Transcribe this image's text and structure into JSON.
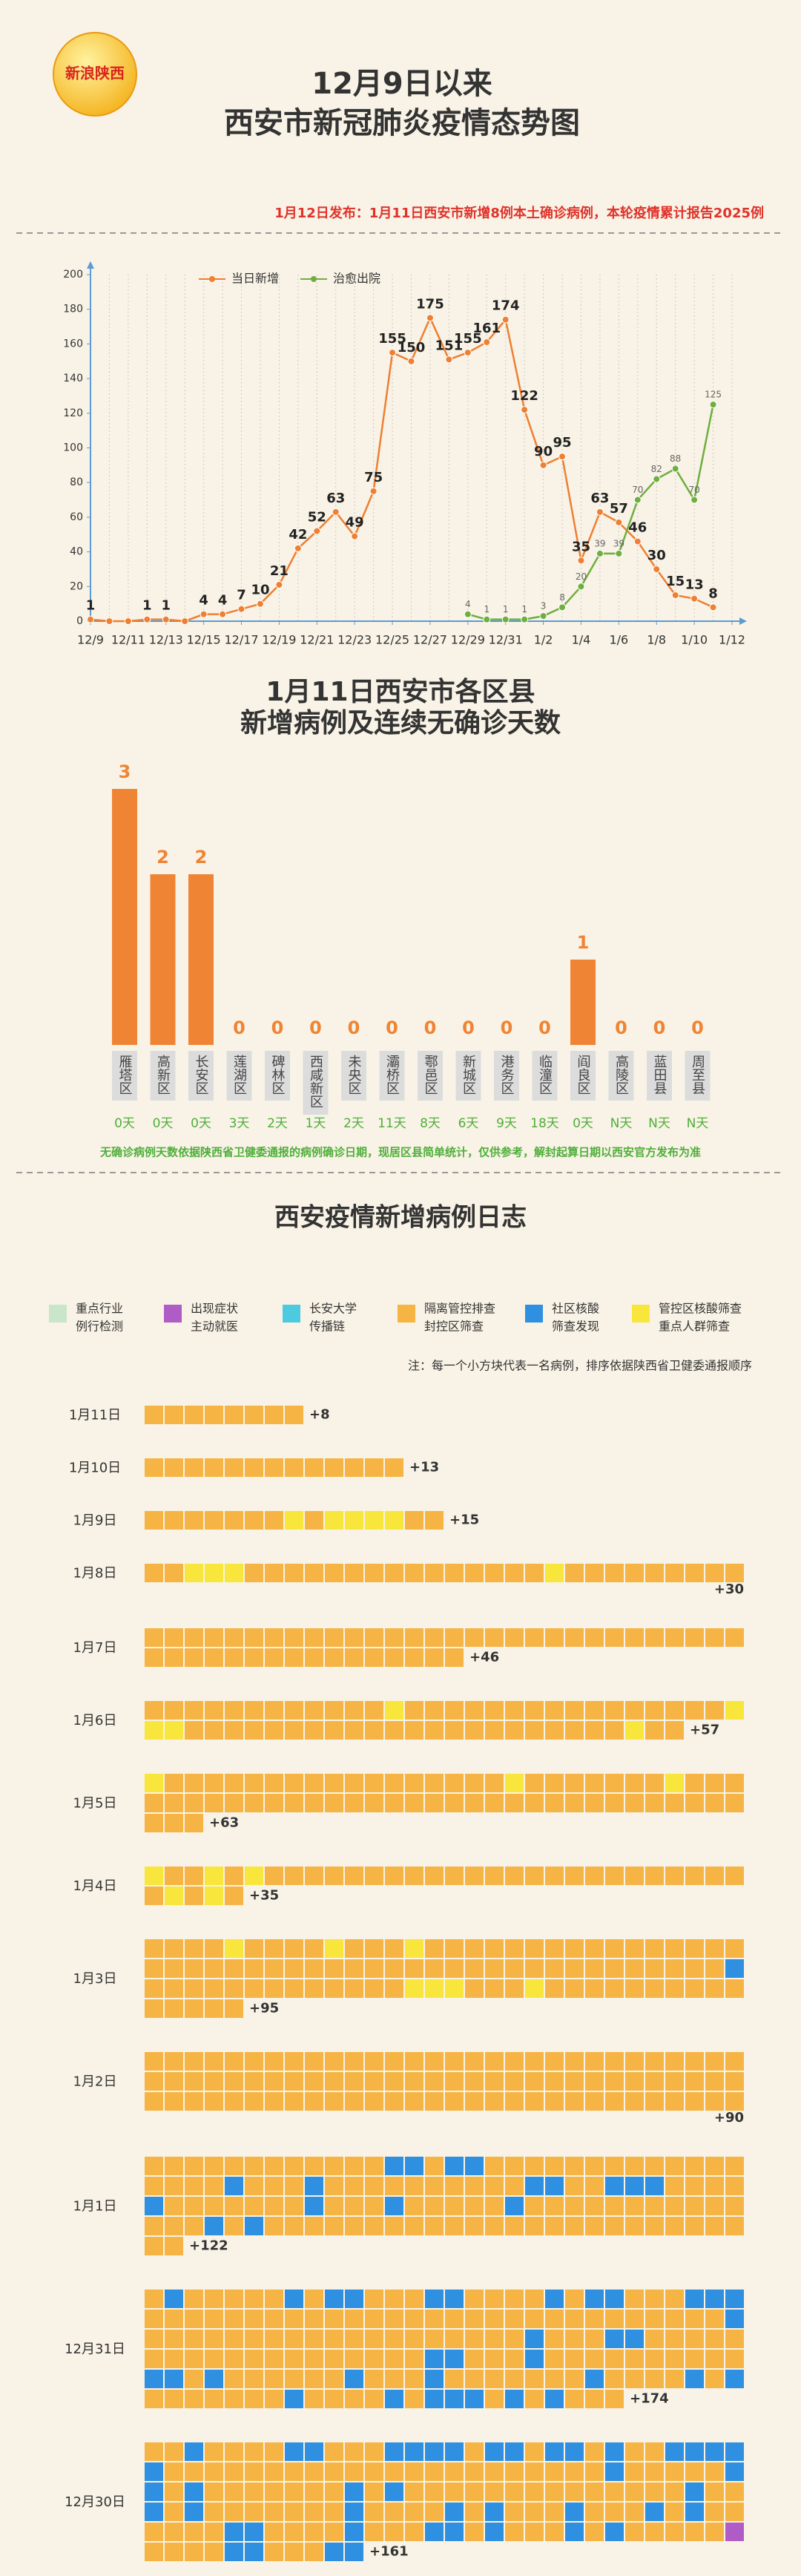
{
  "logo": "新浪陕西",
  "title": [
    "12月9日以来",
    "西安市新冠肺炎疫情态势图"
  ],
  "notice": "1月12日发布：1月11日西安市新增8例本土确诊病例，本轮疫情累计报告2025例",
  "chart_data": [
    {
      "type": "line",
      "legend_position": "top",
      "grid": true,
      "categories": [
        "12/9",
        null,
        "12/11",
        null,
        "12/13",
        null,
        "12/15",
        null,
        "12/17",
        null,
        "12/19",
        null,
        "12/21",
        null,
        "12/23",
        null,
        "12/25",
        null,
        "12/27",
        null,
        "12/29",
        null,
        "12/31",
        null,
        "1/2",
        null,
        "1/4",
        null,
        "1/6",
        null,
        "1/8",
        null,
        "1/10",
        null,
        "1/12"
      ],
      "series": [
        {
          "name": "当日新增",
          "color": "#ee7f33",
          "values": [
            1,
            0,
            0,
            1,
            1,
            0,
            4,
            4,
            7,
            10,
            21,
            42,
            52,
            63,
            49,
            75,
            155,
            150,
            175,
            151,
            155,
            161,
            174,
            122,
            90,
            95,
            35,
            63,
            57,
            46,
            30,
            15,
            13,
            8,
            null
          ]
        },
        {
          "name": "治愈出院",
          "color": "#6fae3f",
          "values": [
            null,
            null,
            null,
            null,
            null,
            null,
            null,
            null,
            null,
            null,
            null,
            null,
            null,
            null,
            null,
            null,
            null,
            null,
            null,
            null,
            4,
            1,
            1,
            1,
            3,
            8,
            20,
            39,
            39,
            70,
            82,
            88,
            70,
            125,
            null
          ]
        }
      ],
      "ylim": [
        0,
        200
      ],
      "yticks": [
        0,
        20,
        40,
        60,
        80,
        100,
        120,
        140,
        160,
        180,
        200
      ]
    },
    {
      "type": "bar",
      "title": [
        "1月11日西安市各区县",
        "新增病例及连续无确诊天数"
      ],
      "color": "#ef8434",
      "categories": [
        "雁塔区",
        "高新区",
        "长安区",
        "莲湖区",
        "碑林区",
        "西咸新区",
        "未央区",
        "灞桥区",
        "鄠邑区",
        "新城区",
        "港务区",
        "临潼区",
        "阎良区",
        "高陵区",
        "蓝田县",
        "周至县"
      ],
      "values": [
        3,
        2,
        2,
        0,
        0,
        0,
        0,
        0,
        0,
        0,
        0,
        0,
        1,
        0,
        0,
        0
      ],
      "days_without_cases": [
        "0天",
        "0天",
        "0天",
        "3天",
        "2天",
        "1天",
        "2天",
        "11天",
        "8天",
        "6天",
        "9天",
        "18天",
        "0天",
        "N天",
        "N天",
        "N天"
      ],
      "note": "无确诊病例天数依据陕西省卫健委通报的病例确诊日期，现居区县简单统计，仅供参考，解封起算日期以西安官方发布为准"
    }
  ],
  "case_log": {
    "title": "西安疫情新增病例日志",
    "legend": [
      {
        "lines": [
          "重点行业",
          "例行检测"
        ],
        "color": "#c8e6c9"
      },
      {
        "lines": [
          "出现症状",
          "主动就医"
        ],
        "color": "#b05cc6"
      },
      {
        "lines": [
          "长安大学",
          "传播链"
        ],
        "color": "#4dc9e0"
      },
      {
        "lines": [
          "隔离管控排查",
          "封控区筛查"
        ],
        "color": "#f6b445"
      },
      {
        "lines": [
          "社区核酸",
          "筛查发现"
        ],
        "color": "#2f8fe0"
      },
      {
        "lines": [
          "管控区核酸筛查",
          "重点人群筛查"
        ],
        "color": "#f8e63c"
      }
    ],
    "note": "注：每一个小方块代表一名病例，排序依据陕西省卫健委通报顺序",
    "days": [
      {
        "date": "1月11日",
        "count": 8,
        "count_label": "+8",
        "runs": [
          [
            3,
            8
          ]
        ]
      },
      {
        "date": "1月10日",
        "count": 13,
        "count_label": "+13",
        "runs": [
          [
            3,
            13
          ]
        ]
      },
      {
        "date": "1月9日",
        "count": 15,
        "count_label": "+15",
        "runs": [
          [
            3,
            7
          ],
          [
            5,
            1
          ],
          [
            3,
            1
          ],
          [
            5,
            4
          ],
          [
            3,
            2
          ]
        ]
      },
      {
        "date": "1月8日",
        "count": 30,
        "count_label": "+30",
        "runs": [
          [
            3,
            2
          ],
          [
            5,
            3
          ],
          [
            3,
            15
          ],
          [
            5,
            1
          ],
          [
            3,
            9
          ]
        ]
      },
      {
        "date": "1月7日",
        "count": 46,
        "count_label": "+46",
        "runs": [
          [
            3,
            46
          ]
        ]
      },
      {
        "date": "1月6日",
        "count": 57,
        "count_label": "+57",
        "runs": [
          [
            3,
            12
          ],
          [
            5,
            1
          ],
          [
            3,
            16
          ],
          [
            5,
            3
          ],
          [
            3,
            22
          ],
          [
            5,
            1
          ],
          [
            3,
            2
          ]
        ]
      },
      {
        "date": "1月5日",
        "count": 63,
        "count_label": "+63",
        "runs": [
          [
            5,
            1
          ],
          [
            3,
            17
          ],
          [
            5,
            1
          ],
          [
            3,
            7
          ],
          [
            5,
            1
          ],
          [
            3,
            36
          ]
        ]
      },
      {
        "date": "1月4日",
        "count": 35,
        "count_label": "+35",
        "runs": [
          [
            5,
            1
          ],
          [
            3,
            2
          ],
          [
            5,
            1
          ],
          [
            3,
            1
          ],
          [
            5,
            1
          ],
          [
            3,
            25
          ],
          [
            5,
            1
          ],
          [
            3,
            1
          ],
          [
            5,
            1
          ],
          [
            3,
            1
          ]
        ]
      },
      {
        "date": "1月3日",
        "count": 95,
        "count_label": "+95",
        "runs": [
          [
            3,
            4
          ],
          [
            5,
            1
          ],
          [
            3,
            4
          ],
          [
            5,
            1
          ],
          [
            3,
            3
          ],
          [
            5,
            1
          ],
          [
            3,
            45
          ],
          [
            4,
            1
          ],
          [
            3,
            13
          ],
          [
            5,
            3
          ],
          [
            3,
            3
          ],
          [
            5,
            1
          ],
          [
            3,
            15
          ]
        ]
      },
      {
        "date": "1月2日",
        "count": 90,
        "count_label": "+90",
        "runs": [
          [
            3,
            90
          ]
        ]
      },
      {
        "date": "1月1日",
        "count": 122,
        "count_label": "+122",
        "runs": [
          [
            3,
            12
          ],
          [
            4,
            2
          ],
          [
            3,
            1
          ],
          [
            4,
            2
          ],
          [
            3,
            17
          ],
          [
            4,
            1
          ],
          [
            3,
            3
          ],
          [
            4,
            1
          ],
          [
            3,
            10
          ],
          [
            4,
            2
          ],
          [
            3,
            2
          ],
          [
            4,
            3
          ],
          [
            3,
            4
          ],
          [
            4,
            1
          ],
          [
            3,
            7
          ],
          [
            4,
            1
          ],
          [
            3,
            3
          ],
          [
            4,
            1
          ],
          [
            3,
            5
          ],
          [
            4,
            1
          ],
          [
            3,
            14
          ],
          [
            4,
            1
          ],
          [
            3,
            1
          ],
          [
            4,
            1
          ],
          [
            3,
            26
          ]
        ]
      },
      {
        "date": "12月31日",
        "count": 174,
        "count_label": "+174",
        "runs": [
          [
            3,
            1
          ],
          [
            4,
            1
          ],
          [
            3,
            5
          ],
          [
            4,
            1
          ],
          [
            3,
            1
          ],
          [
            4,
            2
          ],
          [
            3,
            3
          ],
          [
            4,
            2
          ],
          [
            3,
            4
          ],
          [
            4,
            1
          ],
          [
            3,
            1
          ],
          [
            4,
            2
          ],
          [
            3,
            3
          ],
          [
            4,
            3
          ],
          [
            3,
            29
          ],
          [
            4,
            1
          ],
          [
            3,
            19
          ],
          [
            4,
            1
          ],
          [
            3,
            3
          ],
          [
            4,
            2
          ],
          [
            3,
            19
          ],
          [
            4,
            2
          ],
          [
            3,
            3
          ],
          [
            4,
            1
          ],
          [
            3,
            10
          ],
          [
            4,
            2
          ],
          [
            3,
            1
          ],
          [
            4,
            1
          ],
          [
            3,
            6
          ],
          [
            4,
            1
          ],
          [
            3,
            3
          ],
          [
            4,
            1
          ],
          [
            3,
            7
          ],
          [
            4,
            1
          ],
          [
            3,
            4
          ],
          [
            4,
            1
          ],
          [
            3,
            1
          ],
          [
            4,
            1
          ],
          [
            3,
            7
          ],
          [
            4,
            1
          ],
          [
            3,
            4
          ],
          [
            4,
            1
          ],
          [
            3,
            1
          ],
          [
            4,
            3
          ],
          [
            3,
            1
          ],
          [
            4,
            1
          ],
          [
            3,
            1
          ],
          [
            4,
            1
          ],
          [
            3,
            3
          ]
        ]
      },
      {
        "date": "12月30日",
        "count": 161,
        "count_label": "+161",
        "runs": [
          [
            3,
            2
          ],
          [
            4,
            1
          ],
          [
            3,
            4
          ],
          [
            4,
            2
          ],
          [
            3,
            3
          ],
          [
            4,
            4
          ],
          [
            3,
            1
          ],
          [
            4,
            2
          ],
          [
            3,
            1
          ],
          [
            4,
            2
          ],
          [
            3,
            1
          ],
          [
            4,
            1
          ],
          [
            3,
            2
          ],
          [
            4,
            5
          ],
          [
            3,
            22
          ],
          [
            4,
            1
          ],
          [
            3,
            5
          ],
          [
            4,
            2
          ],
          [
            3,
            1
          ],
          [
            4,
            1
          ],
          [
            3,
            7
          ],
          [
            4,
            1
          ],
          [
            3,
            1
          ],
          [
            4,
            1
          ],
          [
            3,
            14
          ],
          [
            4,
            1
          ],
          [
            3,
            2
          ],
          [
            4,
            1
          ],
          [
            3,
            1
          ],
          [
            4,
            1
          ],
          [
            3,
            7
          ],
          [
            4,
            1
          ],
          [
            3,
            4
          ],
          [
            4,
            1
          ],
          [
            3,
            1
          ],
          [
            4,
            1
          ],
          [
            3,
            3
          ],
          [
            4,
            1
          ],
          [
            3,
            3
          ],
          [
            4,
            1
          ],
          [
            3,
            1
          ],
          [
            4,
            1
          ],
          [
            3,
            6
          ],
          [
            4,
            2
          ],
          [
            3,
            4
          ],
          [
            4,
            1
          ],
          [
            3,
            3
          ],
          [
            4,
            2
          ],
          [
            3,
            1
          ],
          [
            4,
            1
          ],
          [
            3,
            3
          ],
          [
            4,
            1
          ],
          [
            3,
            1
          ],
          [
            4,
            1
          ],
          [
            3,
            5
          ],
          [
            1,
            1
          ],
          [
            3,
            4
          ],
          [
            4,
            2
          ],
          [
            3,
            3
          ],
          [
            4,
            2
          ]
        ]
      }
    ]
  }
}
